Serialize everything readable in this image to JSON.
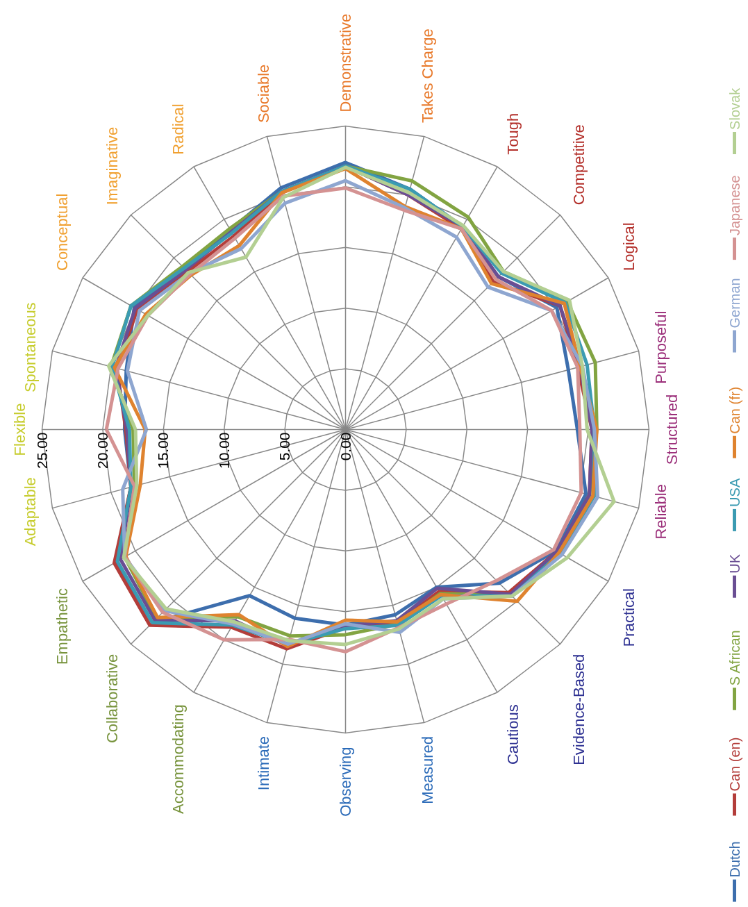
{
  "chart_data": {
    "type": "radar",
    "categories": [
      "Flexible",
      "Spontaneous",
      "Conceptual",
      "Imaginative",
      "Radical",
      "Sociable",
      "Demonstrative",
      "Takes Charge",
      "Tough",
      "Competitive",
      "Logical",
      "Purposeful",
      "Structured",
      "Reliable",
      "Practical",
      "Evidence-Based",
      "Cautious",
      "Measured",
      "Observing",
      "Intimate",
      "Accommodating",
      "Collaborative",
      "Empathetic",
      "Adaptable"
    ],
    "ylim": [
      0,
      25
    ],
    "yticks": [
      {
        "value": 0,
        "label": "0.00"
      },
      {
        "value": 5,
        "label": "5.00"
      },
      {
        "value": 10,
        "label": "10.00"
      },
      {
        "value": 15,
        "label": "15.00"
      },
      {
        "value": 20,
        "label": "20.00"
      },
      {
        "value": 25,
        "label": "25.00"
      }
    ],
    "grid": true,
    "legend": "right",
    "series": [
      {
        "name": "Dutch",
        "color": "#3d6ead",
        "values": [
          18.2,
          18.7,
          20.1,
          18.7,
          19.0,
          20.6,
          22.0,
          20.5,
          19.3,
          17.8,
          20.1,
          19.0,
          19.1,
          20.5,
          20.0,
          17.9,
          15.0,
          15.8,
          16.1,
          16.1,
          15.8,
          22.5,
          21.8,
          18.3
        ]
      },
      {
        "name": "Can (en)",
        "color": "#b33d3a",
        "values": [
          18.1,
          19.5,
          19.8,
          18.4,
          18.4,
          20.2,
          21.7,
          20.0,
          19.1,
          17.2,
          20.4,
          19.8,
          20.3,
          20.8,
          20.1,
          19.0,
          15.4,
          16.5,
          16.3,
          18.7,
          18.8,
          22.8,
          22.0,
          18.3
        ]
      },
      {
        "name": "S African",
        "color": "#82a442",
        "values": [
          17.5,
          20.0,
          20.4,
          19.0,
          19.1,
          20.3,
          21.7,
          21.2,
          20.2,
          18.4,
          21.1,
          21.3,
          20.7,
          20.8,
          20.2,
          19.3,
          15.6,
          16.6,
          16.9,
          17.6,
          17.8,
          22.0,
          21.0,
          18.0
        ]
      },
      {
        "name": "UK",
        "color": "#6a4e93",
        "values": [
          18.0,
          19.6,
          20.0,
          18.6,
          18.8,
          20.3,
          21.7,
          20.0,
          19.3,
          17.8,
          20.4,
          20.0,
          20.3,
          20.8,
          20.1,
          19.2,
          15.1,
          16.3,
          16.2,
          18.4,
          18.2,
          22.2,
          21.4,
          18.3
        ]
      },
      {
        "name": "USA",
        "color": "#3b9bb2",
        "values": [
          17.8,
          19.9,
          20.4,
          18.8,
          18.7,
          20.3,
          21.7,
          20.5,
          19.3,
          18.2,
          20.9,
          20.6,
          20.5,
          21.2,
          20.4,
          19.4,
          15.8,
          16.7,
          16.4,
          18.3,
          18.6,
          22.5,
          21.7,
          18.3
        ]
      },
      {
        "name": "Can (fr)",
        "color": "#df832f",
        "values": [
          16.5,
          19.7,
          19.0,
          18.0,
          17.5,
          20.2,
          21.5,
          19.0,
          19.1,
          17.0,
          20.8,
          20.0,
          20.7,
          21.1,
          20.3,
          20.0,
          15.7,
          16.4,
          15.7,
          18.5,
          17.6,
          21.9,
          20.9,
          17.5
        ]
      },
      {
        "name": "German",
        "color": "#8ea6d0",
        "values": [
          16.4,
          18.6,
          19.6,
          18.2,
          17.2,
          19.3,
          20.5,
          18.9,
          18.3,
          16.6,
          19.6,
          20.2,
          20.5,
          21.5,
          20.6,
          19.4,
          16.1,
          17.3,
          16.0,
          18.3,
          18.5,
          21.1,
          21.0,
          19.0
        ]
      },
      {
        "name": "Japanese",
        "color": "#d49292",
        "values": [
          19.7,
          19.4,
          18.8,
          18.1,
          18.2,
          19.9,
          19.9,
          18.7,
          19.1,
          17.5,
          19.6,
          19.8,
          19.3,
          20.1,
          19.8,
          17.6,
          16.6,
          16.9,
          18.3,
          17.9,
          20.0,
          21.3,
          21.0,
          18.0
        ]
      },
      {
        "name": "Slovak",
        "color": "#b3cf92",
        "values": [
          17.3,
          20.2,
          18.8,
          18.3,
          16.4,
          19.8,
          21.6,
          20.2,
          19.4,
          18.4,
          21.3,
          20.2,
          19.9,
          22.9,
          21.1,
          19.4,
          16.1,
          17.0,
          17.7,
          18.0,
          18.3,
          20.9,
          21.1,
          17.8
        ]
      }
    ]
  }
}
